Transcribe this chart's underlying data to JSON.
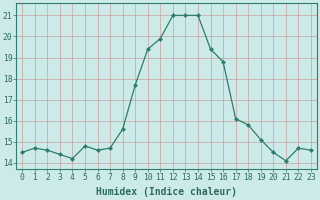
{
  "x": [
    0,
    1,
    2,
    3,
    4,
    5,
    6,
    7,
    8,
    9,
    10,
    11,
    12,
    13,
    14,
    15,
    16,
    17,
    18,
    19,
    20,
    21,
    22,
    23
  ],
  "y": [
    14.5,
    14.7,
    14.6,
    14.4,
    14.2,
    14.8,
    14.6,
    14.7,
    15.6,
    17.7,
    19.4,
    19.9,
    21.0,
    21.0,
    21.0,
    19.4,
    18.8,
    16.1,
    15.8,
    15.1,
    14.5,
    14.1,
    14.7,
    14.6
  ],
  "line_color": "#2e7d6e",
  "marker": "D",
  "marker_size": 2.0,
  "bg_color": "#cceae7",
  "grid_color": "#c8a0a0",
  "xlabel": "Humidex (Indice chaleur)",
  "xlabel_fontsize": 7,
  "ylabel_ticks": [
    14,
    15,
    16,
    17,
    18,
    19,
    20,
    21
  ],
  "ylim": [
    13.7,
    21.6
  ],
  "xlim": [
    -0.5,
    23.5
  ],
  "xticks": [
    0,
    1,
    2,
    3,
    4,
    5,
    6,
    7,
    8,
    9,
    10,
    11,
    12,
    13,
    14,
    15,
    16,
    17,
    18,
    19,
    20,
    21,
    22,
    23
  ],
  "tick_fontsize": 5.8,
  "line_width": 0.9
}
